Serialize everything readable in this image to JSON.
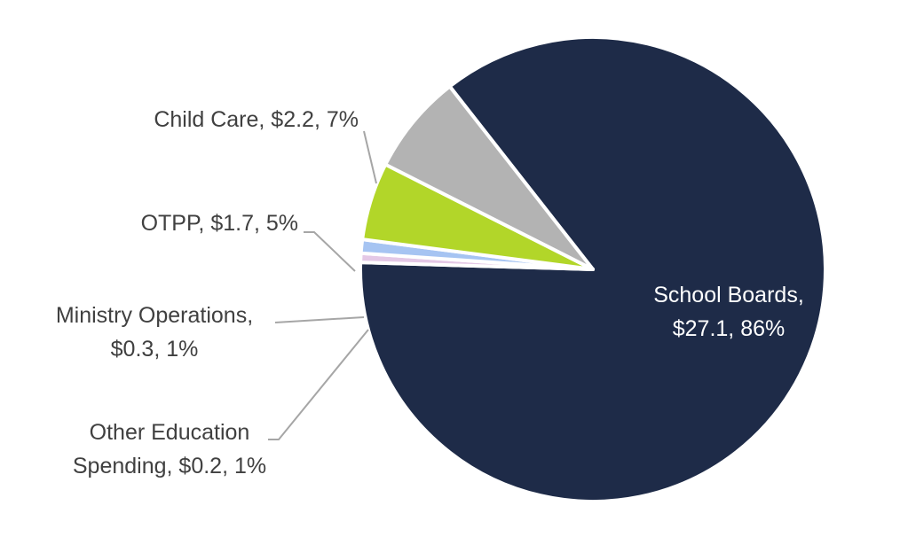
{
  "chart_data": {
    "type": "pie",
    "title": "",
    "unit": "$",
    "slices": [
      {
        "name": "School Boards",
        "value": 27.1,
        "percent": 86,
        "color": "#1e2b48",
        "label_lines": [
          "School Boards,",
          "$27.1, 86%"
        ]
      },
      {
        "name": "Other Education Spending",
        "value": 0.2,
        "percent": 1,
        "color": "#e4c8e6",
        "label_lines": [
          "Other Education",
          "Spending, $0.2, 1%"
        ]
      },
      {
        "name": "Ministry Operations",
        "value": 0.3,
        "percent": 1,
        "color": "#a6c4f2",
        "label_lines": [
          "Ministry Operations,",
          "$0.3, 1%"
        ]
      },
      {
        "name": "OTPP",
        "value": 1.7,
        "percent": 5,
        "color": "#b2d629",
        "label_lines": [
          "OTPP, $1.7, 5%"
        ]
      },
      {
        "name": "Child Care",
        "value": 2.2,
        "percent": 7,
        "color": "#b3b3b3",
        "label_lines": [
          "Child Care, $2.2, 7%"
        ]
      }
    ]
  }
}
